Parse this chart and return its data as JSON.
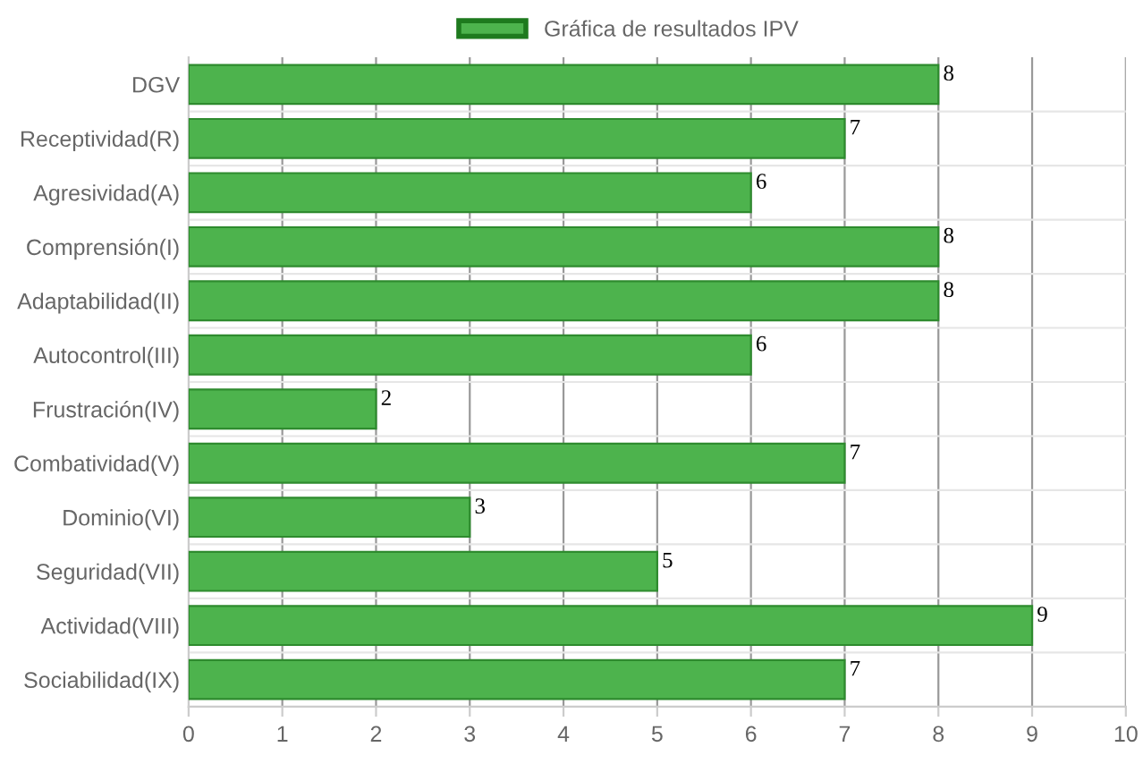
{
  "chart_data": {
    "type": "bar",
    "orientation": "horizontal",
    "categories": [
      "DGV",
      "Receptividad(R)",
      "Agresividad(A)",
      "Comprensión(I)",
      "Adaptabilidad(II)",
      "Autocontrol(III)",
      "Frustración(IV)",
      "Combatividad(V)",
      "Dominio(VI)",
      "Seguridad(VII)",
      "Actividad(VIII)",
      "Sociabilidad(IX)"
    ],
    "series": [
      {
        "name": "Gráfica de resultados IPV",
        "color": "#4db34d",
        "values": [
          8,
          7,
          6,
          8,
          8,
          6,
          2,
          7,
          3,
          5,
          9,
          7
        ]
      }
    ],
    "xlim": [
      0,
      10
    ],
    "xticks": [
      0,
      1,
      2,
      3,
      4,
      5,
      6,
      7,
      8,
      9,
      10
    ],
    "grid": true,
    "legend": "top",
    "data_labels": true
  }
}
